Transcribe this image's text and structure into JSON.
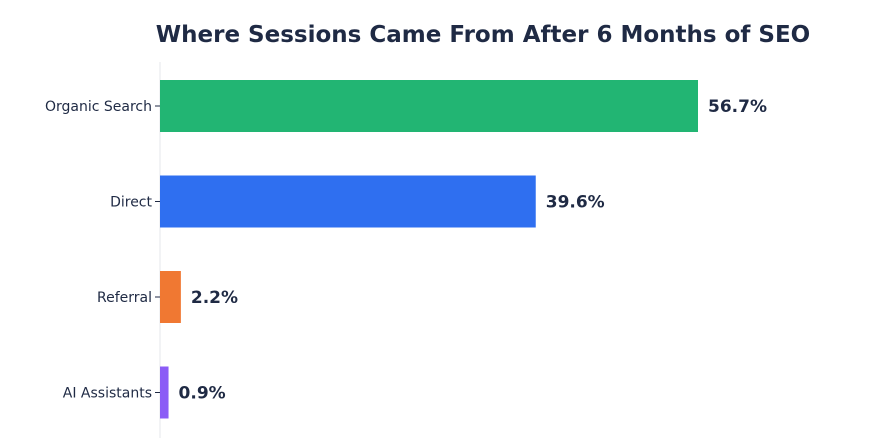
{
  "chart_data": {
    "type": "bar",
    "orientation": "horizontal",
    "title": "Where Sessions Came From After 6 Months of SEO",
    "categories": [
      "Organic Search",
      "Direct",
      "Referral",
      "AI Assistants"
    ],
    "values": [
      56.7,
      39.6,
      2.2,
      0.9
    ],
    "value_labels": [
      "56.7%",
      "39.6%",
      "2.2%",
      "0.9%"
    ],
    "colors": [
      "#22b573",
      "#2f6ff0",
      "#f07832",
      "#8b5cf6"
    ],
    "xlim": [
      0,
      60
    ],
    "grid": false,
    "legend": "none"
  }
}
